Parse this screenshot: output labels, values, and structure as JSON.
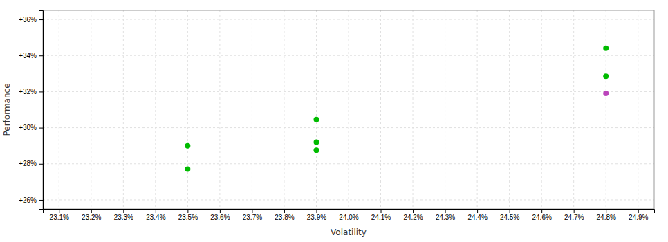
{
  "chart_data": {
    "type": "scatter",
    "xlabel": "Volatility",
    "ylabel": "Performance",
    "x": [
      23.5,
      23.5,
      23.9,
      23.9,
      23.9,
      24.8,
      24.8,
      24.8
    ],
    "values": [
      29.0,
      27.7,
      30.45,
      29.2,
      28.75,
      34.4,
      32.85,
      31.9
    ],
    "colors": [
      "#00bb00",
      "#00bb00",
      "#00bb00",
      "#00bb00",
      "#00bb00",
      "#00bb00",
      "#00bb00",
      "#bb44bb"
    ],
    "xlim": [
      23.05,
      24.95
    ],
    "ylim": [
      25.5,
      36.5
    ],
    "xticks": [
      {
        "value": 23.1,
        "label": "23.1%"
      },
      {
        "value": 23.2,
        "label": "23.2%"
      },
      {
        "value": 23.3,
        "label": "23.3%"
      },
      {
        "value": 23.4,
        "label": "23.4%"
      },
      {
        "value": 23.5,
        "label": "23.5%"
      },
      {
        "value": 23.6,
        "label": "23.6%"
      },
      {
        "value": 23.7,
        "label": "23.7%"
      },
      {
        "value": 23.8,
        "label": "23.8%"
      },
      {
        "value": 23.9,
        "label": "23.9%"
      },
      {
        "value": 24.0,
        "label": "24.0%"
      },
      {
        "value": 24.1,
        "label": "24.1%"
      },
      {
        "value": 24.2,
        "label": "24.2%"
      },
      {
        "value": 24.3,
        "label": "24.3%"
      },
      {
        "value": 24.4,
        "label": "24.4%"
      },
      {
        "value": 24.5,
        "label": "24.5%"
      },
      {
        "value": 24.6,
        "label": "24.6%"
      },
      {
        "value": 24.7,
        "label": "24.7%"
      },
      {
        "value": 24.8,
        "label": "24.8%"
      },
      {
        "value": 24.9,
        "label": "24.9%"
      }
    ],
    "yticks": [
      {
        "value": 26,
        "label": "+26%"
      },
      {
        "value": 28,
        "label": "+28%"
      },
      {
        "value": 30,
        "label": "+30%"
      },
      {
        "value": 32,
        "label": "+32%"
      },
      {
        "value": 34,
        "label": "+34%"
      },
      {
        "value": 36,
        "label": "+36%"
      }
    ],
    "grid": true
  }
}
